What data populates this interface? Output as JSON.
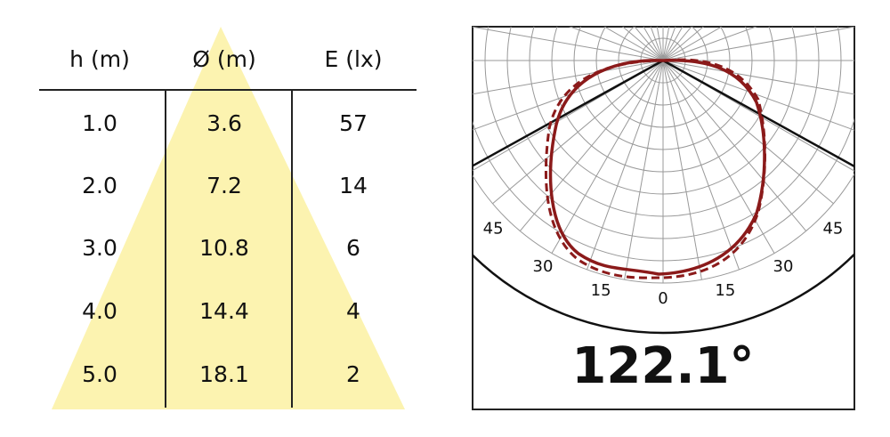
{
  "table": {
    "headers": [
      "h (m)",
      "Ø (m)",
      "E (lx)"
    ],
    "rows": [
      [
        "1.0",
        "3.6",
        "57"
      ],
      [
        "2.0",
        "7.2",
        "14"
      ],
      [
        "3.0",
        "10.8",
        "6"
      ],
      [
        "4.0",
        "14.4",
        "4"
      ],
      [
        "5.0",
        "18.1",
        "2"
      ]
    ]
  },
  "polar": {
    "angle_labels": [
      "45",
      "30",
      "15",
      "0",
      "15",
      "30",
      "45"
    ],
    "beam_angle": "122.1°"
  }
}
